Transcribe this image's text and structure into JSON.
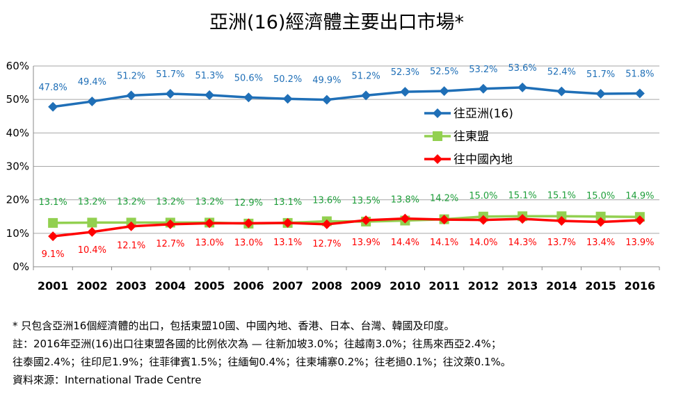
{
  "chart_data": {
    "type": "line",
    "title": "亞洲(16)經濟體主要出口市場*",
    "x": [
      "2001",
      "2002",
      "2003",
      "2004",
      "2005",
      "2006",
      "2007",
      "2008",
      "2009",
      "2010",
      "2011",
      "2012",
      "2013",
      "2014",
      "2015",
      "2016"
    ],
    "ylim": [
      0,
      60
    ],
    "yticks": [
      "0%",
      "10%",
      "20%",
      "30%",
      "40%",
      "50%",
      "60%"
    ],
    "grid": "horizontal",
    "legend": "right-middle",
    "series": [
      {
        "name": "往亞洲(16)",
        "color": "#1F6FB7",
        "marker": "diamond",
        "values": [
          47.8,
          49.4,
          51.2,
          51.7,
          51.3,
          50.6,
          50.2,
          49.9,
          51.2,
          52.3,
          52.5,
          53.2,
          53.6,
          52.4,
          51.7,
          51.8
        ],
        "labels": [
          "47.8%",
          "49.4%",
          "51.2%",
          "51.7%",
          "51.3%",
          "50.6%",
          "50.2%",
          "49.9%",
          "51.2%",
          "52.3%",
          "52.5%",
          "53.2%",
          "53.6%",
          "52.4%",
          "51.7%",
          "51.8%"
        ]
      },
      {
        "name": "往東盟",
        "color": "#92D050",
        "label_color": "#1E9E3A",
        "marker": "square",
        "values": [
          13.1,
          13.2,
          13.2,
          13.2,
          13.2,
          12.9,
          13.1,
          13.6,
          13.5,
          13.8,
          14.2,
          15.0,
          15.1,
          15.1,
          15.0,
          14.9
        ],
        "labels": [
          "13.1%",
          "13.2%",
          "13.2%",
          "13.2%",
          "13.2%",
          "12.9%",
          "13.1%",
          "13.6%",
          "13.5%",
          "13.8%",
          "14.2%",
          "15.0%",
          "15.1%",
          "15.1%",
          "15.0%",
          "14.9%"
        ]
      },
      {
        "name": "往中國內地",
        "color": "#FF0000",
        "marker": "diamond",
        "values": [
          9.1,
          10.4,
          12.1,
          12.7,
          13.0,
          13.0,
          13.1,
          12.7,
          13.9,
          14.4,
          14.1,
          14.0,
          14.3,
          13.7,
          13.4,
          13.9
        ],
        "labels": [
          "9.1%",
          "10.4%",
          "12.1%",
          "12.7%",
          "13.0%",
          "13.0%",
          "13.1%",
          "12.7%",
          "13.9%",
          "14.4%",
          "14.1%",
          "14.0%",
          "14.3%",
          "13.7%",
          "13.4%",
          "13.9%"
        ]
      }
    ]
  },
  "notes": {
    "line1": "* 只包含亞洲16個經濟體的出口，包括東盟10國、中國內地、香港、日本、台灣、韓國及印度。",
    "line2": "註：2016年亞洲(16)出口往東盟各國的比例依次為 — 往新加坡3.0%；往越南3.0%；往馬來西亞2.4%；",
    "line3": "往泰國2.4%；往印尼1.9%；往菲律賓1.5%；往緬甸0.4%；往柬埔寨0.2%；往老撾0.1%；往汶萊0.1%。",
    "source": "資料來源：International Trade Centre"
  }
}
